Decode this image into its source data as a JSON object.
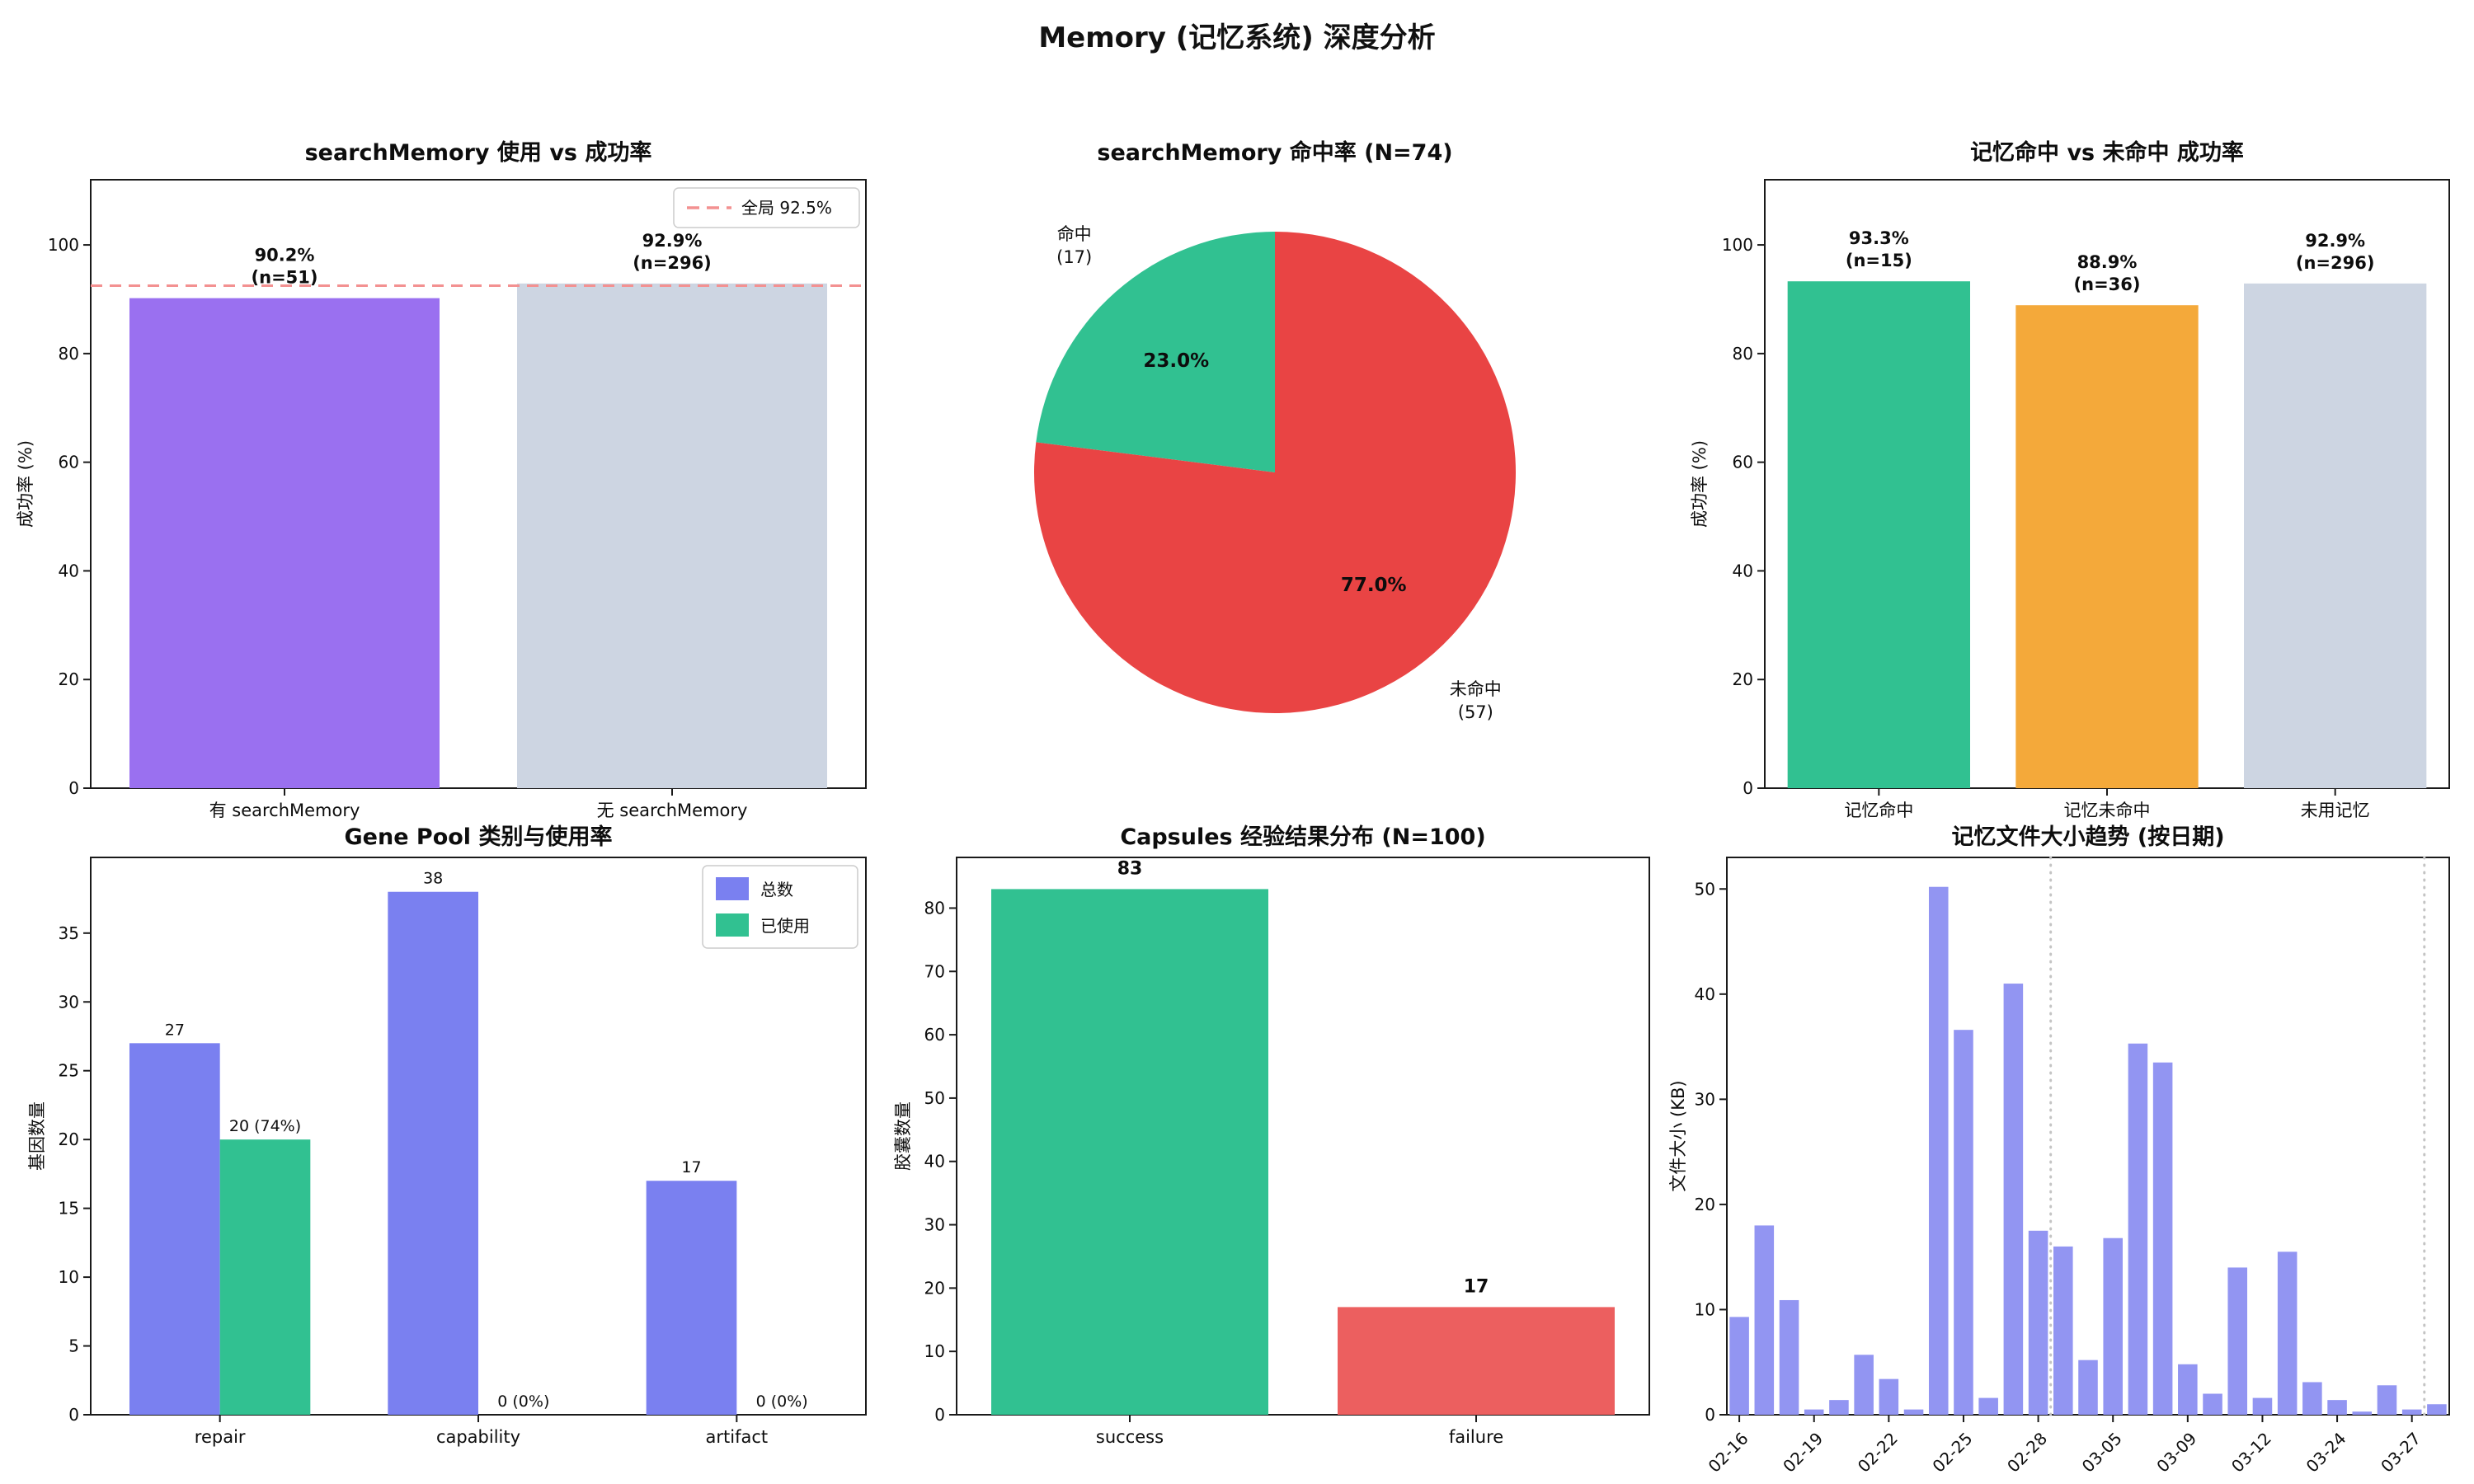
{
  "page_title": "Memory (记忆系统) 深度分析",
  "chart_data": [
    {
      "id": "search-usage",
      "type": "bar",
      "title": "searchMemory 使用 vs 成功率",
      "ylabel": "成功率 (%)",
      "yticks": [
        0,
        20,
        40,
        60,
        80,
        100
      ],
      "ymax": 112,
      "categories": [
        "有 searchMemory",
        "无 searchMemory"
      ],
      "values": [
        90.2,
        92.9
      ],
      "bar_labels": [
        [
          "90.2%",
          "(n=51)"
        ],
        [
          "92.9%",
          "(n=296)"
        ]
      ],
      "bar_colors": [
        "#9a70f0",
        "#cdd5e2"
      ],
      "hline": {
        "y": 92.5,
        "color": "#f39191",
        "label": "全局 92.5%"
      }
    },
    {
      "id": "hit-pie",
      "type": "pie",
      "title": "searchMemory 命中率 (N=74)",
      "start_angle": 90,
      "slices": [
        {
          "label": "命中",
          "count": "(17)",
          "pct": "23.0%",
          "value": 23.0,
          "color": "#31c191"
        },
        {
          "label": "未命中",
          "count": "(57)",
          "pct": "77.0%",
          "value": 77.0,
          "color": "#e94444"
        }
      ]
    },
    {
      "id": "memory-hit",
      "type": "bar",
      "title": "记忆命中 vs 未命中 成功率",
      "ylabel": "成功率 (%)",
      "yticks": [
        0,
        20,
        40,
        60,
        80,
        100
      ],
      "ymax": 112,
      "categories": [
        "记忆命中",
        "记忆未命中",
        "未用记忆"
      ],
      "values": [
        93.3,
        88.9,
        92.9
      ],
      "bar_labels": [
        [
          "93.3%",
          "(n=15)"
        ],
        [
          "88.9%",
          "(n=36)"
        ],
        [
          "92.9%",
          "(n=296)"
        ]
      ],
      "bar_colors": [
        "#31c191",
        "#f4a93a",
        "#cdd5e2"
      ]
    },
    {
      "id": "gene-pool",
      "type": "grouped",
      "title": "Gene Pool 类别与使用率",
      "ylabel": "基因数量",
      "yticks": [
        0,
        5,
        10,
        15,
        20,
        25,
        30,
        35
      ],
      "ymax": 40.5,
      "categories": [
        "repair",
        "capability",
        "artifact"
      ],
      "series": [
        {
          "name": "总数",
          "color": "#7a80f0",
          "values": [
            27,
            38,
            17
          ],
          "labels": [
            "27",
            "38",
            "17"
          ]
        },
        {
          "name": "已使用",
          "color": "#31c191",
          "values": [
            20,
            0,
            0
          ],
          "labels": [
            "20 (74%)",
            "0 (0%)",
            "0 (0%)"
          ]
        }
      ]
    },
    {
      "id": "capsules",
      "type": "bar",
      "title": "Capsules 经验结果分布 (N=100)",
      "ylabel": "胶囊数量",
      "yticks": [
        0,
        10,
        20,
        30,
        40,
        50,
        60,
        70,
        80
      ],
      "ymax": 88,
      "categories": [
        "success",
        "failure"
      ],
      "values": [
        83,
        17
      ],
      "bar_labels": [
        [
          "83"
        ],
        [
          "17"
        ]
      ],
      "bar_colors": [
        "#31c191",
        "#ec5f5f"
      ],
      "big_labels": true
    },
    {
      "id": "file-size",
      "type": "series",
      "title": "记忆文件大小趋势 (按日期)",
      "ylabel": "文件大小 (KB)",
      "yticks": [
        0,
        10,
        20,
        30,
        40,
        50
      ],
      "ymax": 53,
      "values": [
        9.3,
        18,
        10.9,
        0.5,
        1.4,
        5.7,
        3.4,
        0.5,
        50.2,
        36.6,
        1.6,
        41,
        17.5,
        16,
        5.2,
        16.8,
        35.3,
        33.5,
        4.8,
        2,
        14,
        1.6,
        15.5,
        3.1,
        1.4,
        0.3,
        2.8,
        0.5,
        1
      ],
      "tick_labels": [
        "02-16",
        "02-19",
        "02-22",
        "02-25",
        "02-28",
        "03-05",
        "03-09",
        "03-12",
        "03-24",
        "03-27"
      ],
      "tick_indices": [
        0,
        3,
        6,
        9,
        12,
        15,
        18,
        21,
        24,
        27
      ],
      "vlines_after": [
        12,
        27
      ],
      "bar_color": "#9295f2",
      "vline_color": "#c4c4c4"
    }
  ]
}
